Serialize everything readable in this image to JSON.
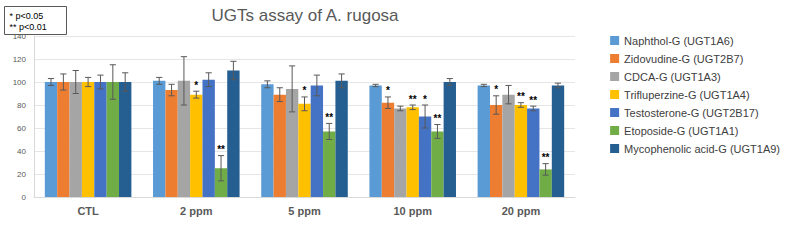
{
  "chart_data": {
    "type": "bar",
    "title": "UGTs assay of A. rugosa",
    "notes": [
      "* p<0.05",
      "** p<0.01"
    ],
    "categories": [
      "CTL",
      "2 ppm",
      "5 ppm",
      "10 ppm",
      "20 ppm"
    ],
    "ylim": [
      0,
      140
    ],
    "yticks": [
      0,
      20,
      40,
      60,
      80,
      100,
      120,
      140
    ],
    "grid": true,
    "legend": "right",
    "series": [
      {
        "name": "Naphthol-G (UGT1A6)",
        "color": "#5b9bd5",
        "values": [
          100,
          101,
          98,
          97,
          97
        ],
        "errors": [
          3,
          3,
          3,
          1,
          1
        ],
        "significance": [
          null,
          null,
          null,
          null,
          null
        ]
      },
      {
        "name": "Zidovudine-G (UGT2B7)",
        "color": "#ed7d31",
        "values": [
          100,
          93,
          89,
          82,
          80
        ],
        "errors": [
          7,
          5,
          6,
          5,
          8
        ],
        "significance": [
          null,
          null,
          null,
          "*",
          "*"
        ]
      },
      {
        "name": "CDCA-G (UGT1A3)",
        "color": "#a5a5a5",
        "values": [
          100,
          101,
          94,
          77,
          89
        ],
        "errors": [
          10,
          21,
          20,
          2,
          8
        ],
        "significance": [
          null,
          null,
          null,
          null,
          null
        ]
      },
      {
        "name": "Trifluperzine-G (UGT1A4)",
        "color": "#ffc000",
        "values": [
          100,
          89,
          81,
          78,
          80
        ],
        "errors": [
          4,
          3,
          6,
          2,
          2
        ],
        "significance": [
          null,
          "*",
          "*",
          "**",
          "**"
        ]
      },
      {
        "name": "Testosterone-G (UGT2B17)",
        "color": "#4472c4",
        "values": [
          100,
          102,
          97,
          70,
          77
        ],
        "errors": [
          6,
          6,
          9,
          10,
          2
        ],
        "significance": [
          null,
          null,
          null,
          "*",
          "**"
        ]
      },
      {
        "name": "Etoposide-G (UGT1A1)",
        "color": "#70ad47",
        "values": [
          100,
          25,
          57,
          57,
          24
        ],
        "errors": [
          15,
          11,
          7,
          6,
          5
        ],
        "significance": [
          null,
          "**",
          "**",
          "**",
          "**"
        ]
      },
      {
        "name": "Mycophenolic acid-G (UGT1A9)",
        "color": "#255e91",
        "values": [
          100,
          110,
          101,
          100,
          97
        ],
        "errors": [
          8,
          8,
          6,
          3,
          2
        ],
        "significance": [
          null,
          null,
          null,
          null,
          null
        ]
      }
    ]
  }
}
